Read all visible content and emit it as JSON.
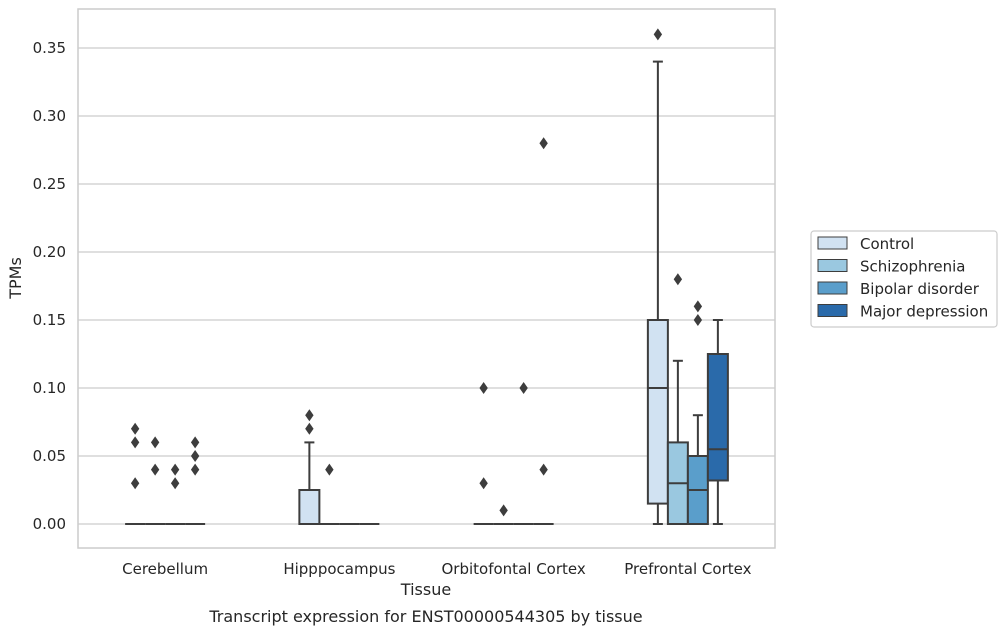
{
  "chart_data": {
    "type": "box",
    "xlabel": "Tissue",
    "ylabel": "TPMs",
    "caption": "Transcript expression for ENST00000544305 by tissue",
    "ylim": [
      -0.018,
      0.378
    ],
    "yticks": [
      "0.00",
      "0.05",
      "0.10",
      "0.15",
      "0.20",
      "0.25",
      "0.30",
      "0.35"
    ],
    "grid": "horizontal",
    "legend_position": "right",
    "categories": [
      "Cerebellum",
      "Hipppocampus",
      "Orbitofontal Cortex",
      "Prefrontal Cortex"
    ],
    "series": [
      {
        "name": "Control",
        "color": "#d1e2f2",
        "boxes": [
          {
            "min": 0,
            "q1": 0,
            "median": 0,
            "q3": 0,
            "max": 0,
            "outliers": [
              0.07,
              0.06,
              0.03
            ]
          },
          {
            "min": 0,
            "q1": 0,
            "median": 0,
            "q3": 0.025,
            "max": 0.06,
            "outliers": [
              0.08,
              0.07
            ]
          },
          {
            "min": 0,
            "q1": 0,
            "median": 0,
            "q3": 0,
            "max": 0,
            "outliers": [
              0.1,
              0.03
            ]
          },
          {
            "min": 0,
            "q1": 0.015,
            "median": 0.1,
            "q3": 0.15,
            "max": 0.34,
            "outliers": [
              0.36
            ]
          }
        ]
      },
      {
        "name": "Schizophrenia",
        "color": "#9ac8e0",
        "boxes": [
          {
            "min": 0,
            "q1": 0,
            "median": 0,
            "q3": 0,
            "max": 0,
            "outliers": [
              0.06,
              0.04
            ]
          },
          {
            "min": 0,
            "q1": 0,
            "median": 0,
            "q3": 0,
            "max": 0,
            "outliers": [
              0.04
            ]
          },
          {
            "min": 0,
            "q1": 0,
            "median": 0,
            "q3": 0,
            "max": 0,
            "outliers": [
              0.01
            ]
          },
          {
            "min": 0,
            "q1": 0,
            "median": 0.03,
            "q3": 0.06,
            "max": 0.12,
            "outliers": [
              0.18
            ]
          }
        ]
      },
      {
        "name": "Bipolar disorder",
        "color": "#5a9ecb",
        "boxes": [
          {
            "min": 0,
            "q1": 0,
            "median": 0,
            "q3": 0,
            "max": 0,
            "outliers": [
              0.04,
              0.03
            ]
          },
          {
            "min": 0,
            "q1": 0,
            "median": 0,
            "q3": 0,
            "max": 0,
            "outliers": []
          },
          {
            "min": 0,
            "q1": 0,
            "median": 0,
            "q3": 0,
            "max": 0,
            "outliers": [
              0.1
            ]
          },
          {
            "min": 0,
            "q1": 0,
            "median": 0.025,
            "q3": 0.05,
            "max": 0.08,
            "outliers": [
              0.16,
              0.15
            ]
          }
        ]
      },
      {
        "name": "Major depression",
        "color": "#2a6aaa",
        "boxes": [
          {
            "min": 0,
            "q1": 0,
            "median": 0,
            "q3": 0,
            "max": 0,
            "outliers": [
              0.06,
              0.05,
              0.04
            ]
          },
          {
            "min": 0,
            "q1": 0,
            "median": 0,
            "q3": 0,
            "max": 0,
            "outliers": []
          },
          {
            "min": 0,
            "q1": 0,
            "median": 0,
            "q3": 0,
            "max": 0,
            "outliers": [
              0.28,
              0.04
            ]
          },
          {
            "min": 0,
            "q1": 0.032,
            "median": 0.055,
            "q3": 0.125,
            "max": 0.15,
            "outliers": []
          }
        ]
      }
    ]
  }
}
